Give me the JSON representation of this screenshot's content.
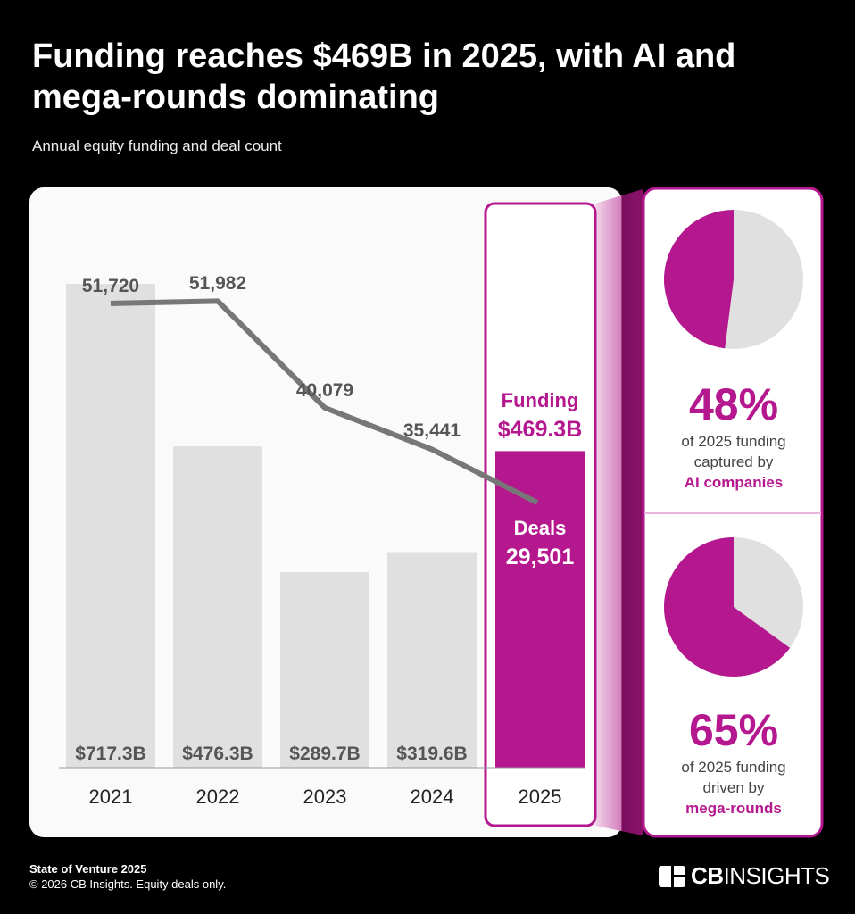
{
  "title": "Funding reaches $469B in 2025, with AI and mega-rounds dominating",
  "subtitle": "Annual equity funding and deal count",
  "colors": {
    "accent": "#b5178f",
    "bar": "#e0e0e0",
    "line": "#777777",
    "label": "#555555"
  },
  "chart_data": {
    "type": "bar",
    "categories": [
      "2021",
      "2022",
      "2023",
      "2024",
      "2025"
    ],
    "series": [
      {
        "name": "Funding",
        "values": [
          717.3,
          476.3,
          289.7,
          319.6,
          469.3
        ],
        "labels": [
          "$717.3B",
          "$476.3B",
          "$289.7B",
          "$319.6B",
          "$469.3B"
        ]
      },
      {
        "name": "Deals",
        "type": "line",
        "values": [
          51720,
          51982,
          40079,
          35441,
          29501
        ],
        "labels": [
          "51,720",
          "51,982",
          "40,079",
          "35,441",
          "29,501"
        ]
      }
    ],
    "highlight": {
      "category": "2025",
      "funding_label": "Funding",
      "deals_label": "Deals"
    }
  },
  "side": {
    "stats": [
      {
        "value": 48,
        "pct": "48%",
        "line1": "of 2025 funding",
        "line2": "captured by",
        "line3": "AI companies"
      },
      {
        "value": 65,
        "pct": "65%",
        "line1": "of 2025 funding",
        "line2": "driven by",
        "line3": "mega-rounds"
      }
    ]
  },
  "footer": {
    "source": "State of Venture 2025",
    "note": "© 2026 CB Insights. Equity deals only.",
    "logo": "CBINSIGHTS"
  }
}
